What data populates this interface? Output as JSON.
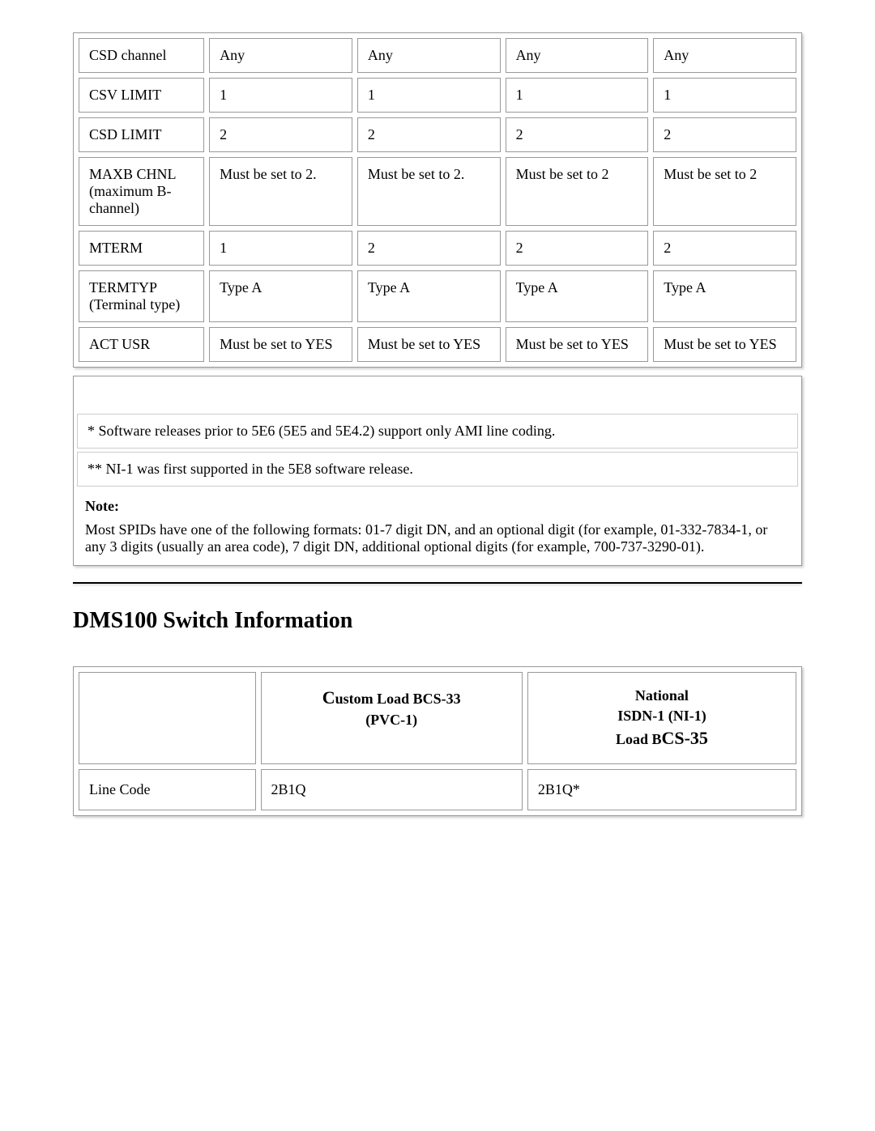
{
  "table1": {
    "columns": [
      "param",
      "c1",
      "c2",
      "c3",
      "c4"
    ],
    "rows": [
      [
        "CSD channel",
        "Any",
        "Any",
        "Any",
        "Any"
      ],
      [
        "CSV LIMIT",
        "1",
        "1",
        "1",
        "1"
      ],
      [
        "CSD LIMIT",
        "2",
        "2",
        "2",
        "2"
      ],
      [
        "MAXB CHNL (maximum B-channel)",
        "Must be set to 2.",
        "Must be set to 2.",
        "Must be set to 2",
        "Must be set to 2"
      ],
      [
        "MTERM",
        "1",
        "2",
        "2",
        "2"
      ],
      [
        "TERMTYP (Terminal type)",
        "Type A",
        "Type A",
        "Type A",
        "Type A"
      ],
      [
        "ACT USR",
        "Must be set to YES",
        "Must be set to YES",
        "Must be set to YES",
        "Must be set to YES"
      ]
    ]
  },
  "footnotes": {
    "fn1": "* Software releases prior to 5E6 (5E5 and 5E4.2) support only AMI line coding.",
    "fn2": "** NI-1 was first supported in the 5E8 software release.",
    "note_label": "Note:",
    "note_text": "Most SPIDs have one of the following formats: 01-7 digit DN, and an optional digit (for example, 01-332-7834-1, or any 3 digits (usually an area code), 7 digit DN, additional optional digits (for example, 700-737-3290-01)."
  },
  "heading": "DMS100 Switch Information",
  "dms": {
    "header_blank": "",
    "header1_line1": "Custom Load BCS-33",
    "header1_line2": "(PVC-1)",
    "header2_line1": "National",
    "header2_line2": "ISDN-1 (NI-1)",
    "header2_line3": "Load BCS-35",
    "row1_param": "Line Code",
    "row1_c1": "2B1Q",
    "row1_c2": "2B1Q*"
  }
}
